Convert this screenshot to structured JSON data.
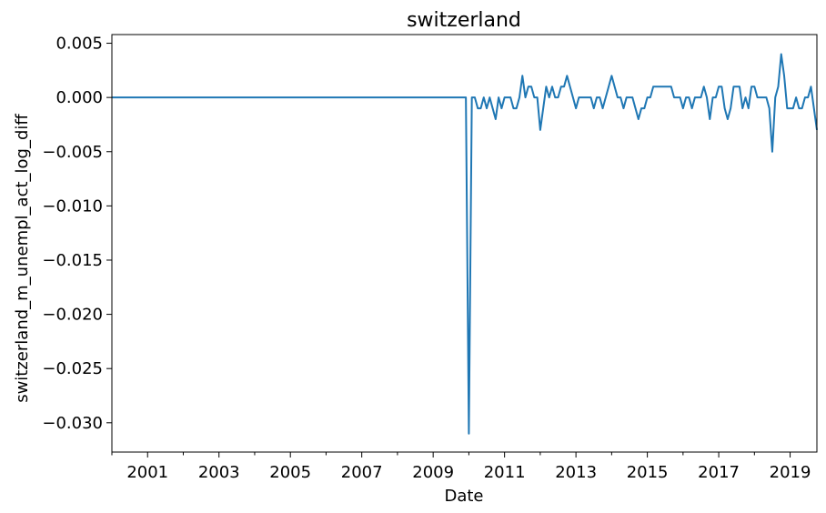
{
  "chart_data": {
    "type": "line",
    "title": "switzerland",
    "xlabel": "Date",
    "ylabel": "switzerland_m_unempl_act_log_diff",
    "x_tick_labels": [
      "2001",
      "2003",
      "2005",
      "2007",
      "2009",
      "2011",
      "2013",
      "2015",
      "2017",
      "2019"
    ],
    "y_tick_labels": [
      "0.005",
      "0.000",
      "−0.005",
      "−0.010",
      "−0.015",
      "−0.020",
      "−0.025",
      "−0.030"
    ],
    "y_ticks": [
      0.005,
      0.0,
      -0.005,
      -0.01,
      -0.015,
      -0.02,
      -0.025,
      -0.03
    ],
    "xlim": [
      "2000-01",
      "2019-10"
    ],
    "ylim": [
      -0.0327,
      0.0058
    ],
    "grid": false,
    "legend": "none",
    "series": [
      {
        "color": "#1f77b4",
        "x": [
          "2000-01",
          "2009-12",
          "2010-01",
          "2010-02",
          "2010-03",
          "2010-04",
          "2010-05",
          "2010-06",
          "2010-07",
          "2010-08",
          "2010-09",
          "2010-10",
          "2010-11",
          "2010-12",
          "2011-01",
          "2011-02",
          "2011-03",
          "2011-04",
          "2011-05",
          "2011-06",
          "2011-07",
          "2011-08",
          "2011-09",
          "2011-10",
          "2011-11",
          "2011-12",
          "2012-01",
          "2012-02",
          "2012-03",
          "2012-04",
          "2012-05",
          "2012-06",
          "2012-07",
          "2012-08",
          "2012-09",
          "2012-10",
          "2012-11",
          "2012-12",
          "2013-01",
          "2013-02",
          "2013-03",
          "2013-04",
          "2013-05",
          "2013-06",
          "2013-07",
          "2013-08",
          "2013-09",
          "2013-10",
          "2013-11",
          "2013-12",
          "2014-01",
          "2014-02",
          "2014-03",
          "2014-04",
          "2014-05",
          "2014-06",
          "2014-07",
          "2014-08",
          "2014-09",
          "2014-10",
          "2014-11",
          "2014-12",
          "2015-01",
          "2015-02",
          "2015-03",
          "2015-04",
          "2015-05",
          "2015-06",
          "2015-07",
          "2015-08",
          "2015-09",
          "2015-10",
          "2015-11",
          "2015-12",
          "2016-01",
          "2016-02",
          "2016-03",
          "2016-04",
          "2016-05",
          "2016-06",
          "2016-07",
          "2016-08",
          "2016-09",
          "2016-10",
          "2016-11",
          "2016-12",
          "2017-01",
          "2017-02",
          "2017-03",
          "2017-04",
          "2017-05",
          "2017-06",
          "2017-07",
          "2017-08",
          "2017-09",
          "2017-10",
          "2017-11",
          "2017-12",
          "2018-01",
          "2018-02",
          "2018-03",
          "2018-04",
          "2018-05",
          "2018-06",
          "2018-07",
          "2018-08",
          "2018-09",
          "2018-10",
          "2018-11",
          "2018-12",
          "2019-01",
          "2019-02",
          "2019-03",
          "2019-04",
          "2019-05",
          "2019-06",
          "2019-07",
          "2019-08",
          "2019-09",
          "2019-10"
        ],
        "y": [
          0.0,
          0.0,
          -0.031,
          0.0,
          0.0,
          -0.001,
          -0.001,
          0.0,
          -0.001,
          0.0,
          -0.001,
          -0.002,
          0.0,
          -0.001,
          0.0,
          0.0,
          0.0,
          -0.001,
          -0.001,
          0.0,
          0.002,
          0.0,
          0.001,
          0.001,
          0.0,
          0.0,
          -0.003,
          -0.001,
          0.001,
          0.0,
          0.001,
          0.0,
          0.0,
          0.001,
          0.001,
          0.002,
          0.001,
          0.0,
          -0.001,
          0.0,
          0.0,
          0.0,
          0.0,
          0.0,
          -0.001,
          0.0,
          0.0,
          -0.001,
          0.0,
          0.001,
          0.002,
          0.001,
          0.0,
          0.0,
          -0.001,
          0.0,
          0.0,
          0.0,
          -0.001,
          -0.002,
          -0.001,
          -0.001,
          0.0,
          0.0,
          0.001,
          0.001,
          0.001,
          0.001,
          0.001,
          0.001,
          0.001,
          0.0,
          0.0,
          0.0,
          -0.001,
          0.0,
          0.0,
          -0.001,
          0.0,
          0.0,
          0.0,
          0.001,
          0.0,
          -0.002,
          0.0,
          0.0,
          0.001,
          0.001,
          -0.001,
          -0.002,
          -0.001,
          0.001,
          0.001,
          0.001,
          -0.001,
          0.0,
          -0.001,
          0.001,
          0.001,
          0.0,
          0.0,
          0.0,
          0.0,
          -0.001,
          -0.005,
          0.0,
          0.001,
          0.004,
          0.002,
          -0.001,
          -0.001,
          -0.001,
          0.0,
          -0.001,
          -0.001,
          0.0,
          0.0,
          0.001,
          -0.001,
          -0.003
        ]
      }
    ]
  }
}
